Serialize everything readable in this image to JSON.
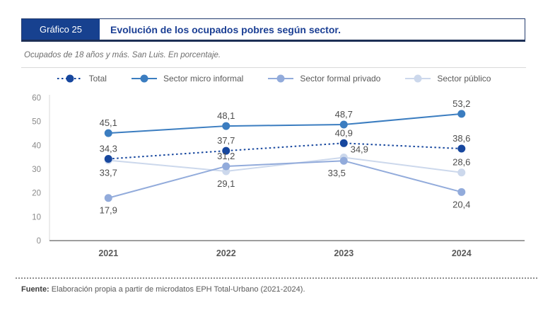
{
  "header": {
    "tag": "Gráfico 25",
    "title": "Evolución de los ocupados pobres según sector."
  },
  "subtitle": "Ocupados de 18 años y más. San Luis. En porcentaje.",
  "footer": {
    "source_label": "Fuente:",
    "source_text": " Elaboración propia a partir de microdatos EPH Total-Urbano (2021-2024)."
  },
  "colors": {
    "header_box": "#17418f",
    "title_text": "#1b3f94",
    "axis_line": "#9e9e9e",
    "y_axis_line": "#d9d9d9",
    "tick_text": "#8a8a8a",
    "year_text": "#595959",
    "data_label_text": "#4d4d4d"
  },
  "chart_data": {
    "type": "line",
    "title": "Evolución de los ocupados pobres según sector.",
    "xlabel": "",
    "ylabel": "",
    "categories": [
      "2021",
      "2022",
      "2023",
      "2024"
    ],
    "ylim": [
      0,
      60
    ],
    "yticks": [
      0,
      10,
      20,
      30,
      40,
      50,
      60
    ],
    "grid": false,
    "legend_position": "top",
    "series": [
      {
        "name": "Total",
        "values": [
          34.3,
          37.7,
          40.9,
          38.6
        ],
        "labels": [
          "34,3",
          "37,7",
          "40,9",
          "38,6"
        ],
        "color": "#17479e",
        "line_style": "dotted",
        "label_offsets": [
          [
            0,
            -10
          ],
          [
            0,
            -10
          ],
          [
            0,
            -10
          ],
          [
            0,
            -10
          ]
        ]
      },
      {
        "name": "Sector micro informal",
        "values": [
          45.1,
          48.1,
          48.7,
          53.2
        ],
        "labels": [
          "45,1",
          "48,1",
          "48,7",
          "53,2"
        ],
        "color": "#3b7dc0",
        "line_style": "solid",
        "label_offsets": [
          [
            0,
            -10
          ],
          [
            0,
            -10
          ],
          [
            0,
            -10
          ],
          [
            0,
            -10
          ]
        ]
      },
      {
        "name": "Sector formal privado",
        "values": [
          17.9,
          31.2,
          33.5,
          20.4
        ],
        "labels": [
          "17,9",
          "31,2",
          "33,5",
          "20,4"
        ],
        "color": "#92abdb",
        "line_style": "solid",
        "label_offsets": [
          [
            0,
            22
          ],
          [
            0,
            -10
          ],
          [
            -10,
            22
          ],
          [
            0,
            22
          ]
        ]
      },
      {
        "name": "Sector público",
        "values": [
          33.7,
          29.1,
          34.9,
          28.6
        ],
        "labels": [
          "33,7",
          "29,1",
          "34,9",
          "28,6"
        ],
        "color": "#ccd8ec",
        "line_style": "solid",
        "label_offsets": [
          [
            0,
            22
          ],
          [
            0,
            22
          ],
          [
            22,
            -7
          ],
          [
            0,
            -10
          ]
        ]
      }
    ]
  }
}
